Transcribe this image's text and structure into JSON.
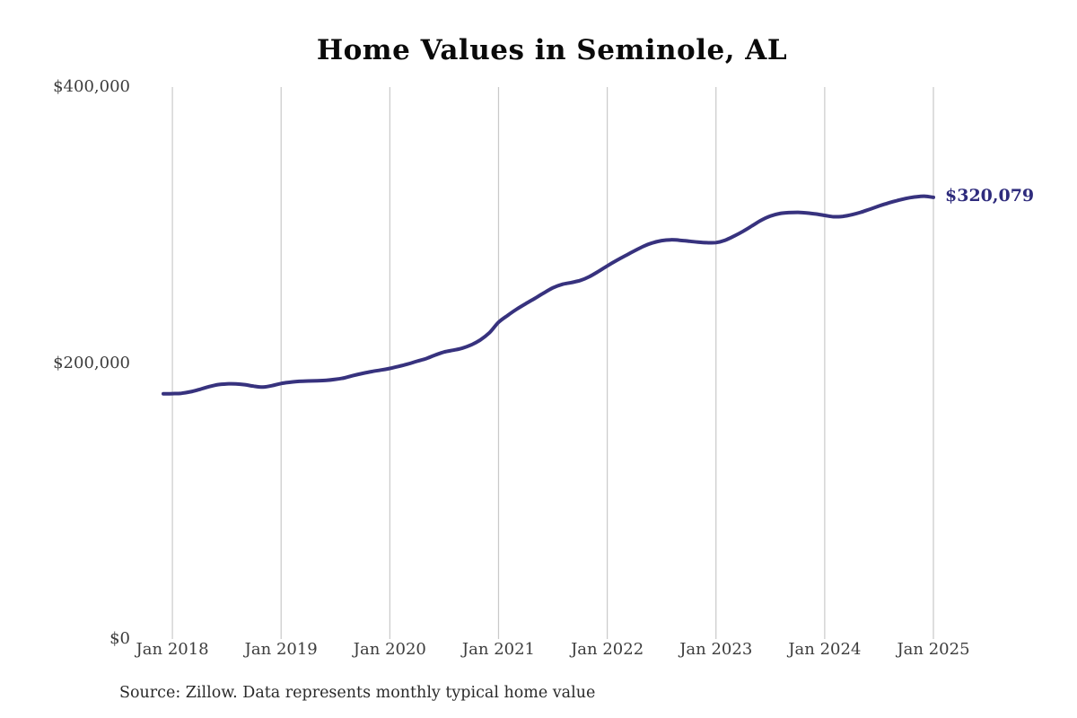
{
  "source_note": "Source: Zillow. Data represents monthly typical home value",
  "chart_data": {
    "type": "line",
    "title": "Home Values in Seminole, AL",
    "xlabel": "",
    "ylabel": "",
    "ylim": [
      0,
      400000
    ],
    "grid": "vertical-gridlines-only",
    "legend": "none",
    "line_color": "#37327e",
    "gridline_color": "#c9c9c9",
    "y_ticks": [
      {
        "value": 0,
        "label": "$0"
      },
      {
        "value": 200000,
        "label": "$200,000"
      },
      {
        "value": 400000,
        "label": "$400,000"
      }
    ],
    "x_tick_labels": [
      "Jan 2018",
      "Jan 2019",
      "Jan 2020",
      "Jan 2021",
      "Jan 2022",
      "Jan 2023",
      "Jan 2024",
      "Jan 2025"
    ],
    "annotation": {
      "text": "$320,079",
      "value": 320079,
      "color": "#2e2b7c"
    },
    "series": [
      {
        "name": "Monthly typical home value",
        "months": [
          "Dec 2017",
          "Jan 2018",
          "Feb 2018",
          "Mar 2018",
          "Apr 2018",
          "May 2018",
          "Jun 2018",
          "Jul 2018",
          "Aug 2018",
          "Sep 2018",
          "Oct 2018",
          "Nov 2018",
          "Dec 2018",
          "Jan 2019",
          "Feb 2019",
          "Mar 2019",
          "Apr 2019",
          "May 2019",
          "Jun 2019",
          "Jul 2019",
          "Aug 2019",
          "Sep 2019",
          "Oct 2019",
          "Nov 2019",
          "Dec 2019",
          "Jan 2020",
          "Feb 2020",
          "Mar 2020",
          "Apr 2020",
          "May 2020",
          "Jun 2020",
          "Jul 2020",
          "Aug 2020",
          "Sep 2020",
          "Oct 2020",
          "Nov 2020",
          "Dec 2020",
          "Jan 2021",
          "Feb 2021",
          "Mar 2021",
          "Apr 2021",
          "May 2021",
          "Jun 2021",
          "Jul 2021",
          "Aug 2021",
          "Sep 2021",
          "Oct 2021",
          "Nov 2021",
          "Dec 2021",
          "Jan 2022",
          "Feb 2022",
          "Mar 2022",
          "Apr 2022",
          "May 2022",
          "Jun 2022",
          "Jul 2022",
          "Aug 2022",
          "Sep 2022",
          "Oct 2022",
          "Nov 2022",
          "Dec 2022",
          "Jan 2023",
          "Feb 2023",
          "Mar 2023",
          "Apr 2023",
          "May 2023",
          "Jun 2023",
          "Jul 2023",
          "Aug 2023",
          "Sep 2023",
          "Oct 2023",
          "Nov 2023",
          "Dec 2023",
          "Jan 2024",
          "Feb 2024",
          "Mar 2024",
          "Apr 2024",
          "May 2024",
          "Jun 2024",
          "Jul 2024",
          "Aug 2024",
          "Sep 2024",
          "Oct 2024",
          "Nov 2024",
          "Dec 2024",
          "Jan 2025"
        ],
        "values": [
          177700,
          177800,
          178100,
          179200,
          180900,
          182800,
          184300,
          184900,
          184900,
          184300,
          183200,
          182600,
          183600,
          185200,
          186100,
          186700,
          187000,
          187200,
          187500,
          188200,
          189300,
          191000,
          192500,
          193800,
          194900,
          196100,
          197600,
          199300,
          201300,
          203200,
          205800,
          208000,
          209300,
          210800,
          213200,
          216800,
          222000,
          229500,
          234500,
          239000,
          243000,
          246800,
          250800,
          254500,
          257000,
          258300,
          259800,
          262500,
          266300,
          270400,
          274200,
          277800,
          281300,
          284600,
          287100,
          288700,
          289300,
          289000,
          288300,
          287600,
          287200,
          287300,
          289000,
          292000,
          295500,
          299500,
          303500,
          306500,
          308300,
          309000,
          309200,
          308800,
          308000,
          307000,
          306000,
          306300,
          307500,
          309300,
          311500,
          313800,
          315900,
          317700,
          319300,
          320400,
          320900,
          320079
        ]
      }
    ]
  }
}
